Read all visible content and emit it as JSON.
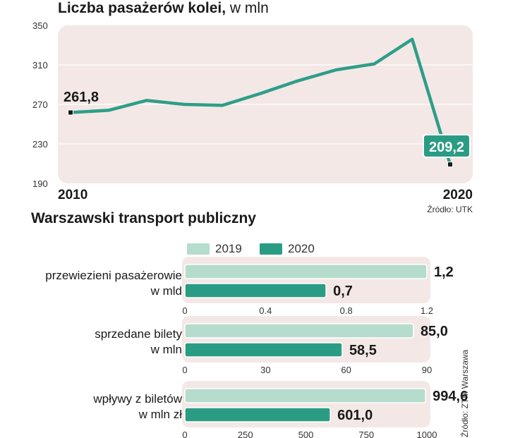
{
  "colors": {
    "panel_bg": "#f3e8e6",
    "line": "#2e9e88",
    "c2019": "#b5dccd",
    "c2020": "#2a9c84",
    "label_bg": "#2a9c84"
  },
  "titles": {
    "main_bold": "Liczba pasażerów kolei,",
    "main_unit": " w mln",
    "second": "Warszawski transport publiczny",
    "source1": "Źródło: UTK",
    "source2": "Źródło: ZTM Warszawa"
  },
  "chart_data": [
    {
      "type": "line",
      "title": "Liczba pasażerów kolei, w mln",
      "x": [
        2010,
        2011,
        2012,
        2013,
        2014,
        2015,
        2016,
        2017,
        2018,
        2019,
        2020
      ],
      "values": [
        261.8,
        264,
        274,
        270,
        269,
        281,
        294,
        305,
        311,
        336,
        209.2
      ],
      "ylim": [
        190,
        350
      ],
      "yticks": [
        "190",
        "230",
        "270",
        "310",
        "350"
      ],
      "xtick_labels": [
        "2010",
        "2020"
      ],
      "annotations": [
        "261,8",
        "209,2"
      ]
    },
    {
      "type": "bar",
      "orientation": "horizontal",
      "legend": [
        "2019",
        "2020"
      ],
      "groups": [
        {
          "label": "przewiezieni pasażerowie\nw mld",
          "values": [
            1.2,
            0.7
          ],
          "value_labels": [
            "1,2",
            "0,7"
          ],
          "xlim": [
            0,
            1.2
          ],
          "ticks": [
            "0",
            "0.4",
            "0.8",
            "1.2"
          ]
        },
        {
          "label": "sprzedane bilety\nw mln",
          "values": [
            85.0,
            58.5
          ],
          "value_labels": [
            "85,0",
            "58,5"
          ],
          "xlim": [
            0,
            90
          ],
          "ticks": [
            "0",
            "30",
            "60",
            "90"
          ]
        },
        {
          "label": "wpływy z biletów\nw mln zł",
          "values": [
            994.6,
            601.0
          ],
          "value_labels": [
            "994,6",
            "601,0"
          ],
          "xlim": [
            0,
            1000
          ],
          "ticks": [
            "0",
            "250",
            "500",
            "750",
            "1000"
          ]
        }
      ]
    }
  ]
}
